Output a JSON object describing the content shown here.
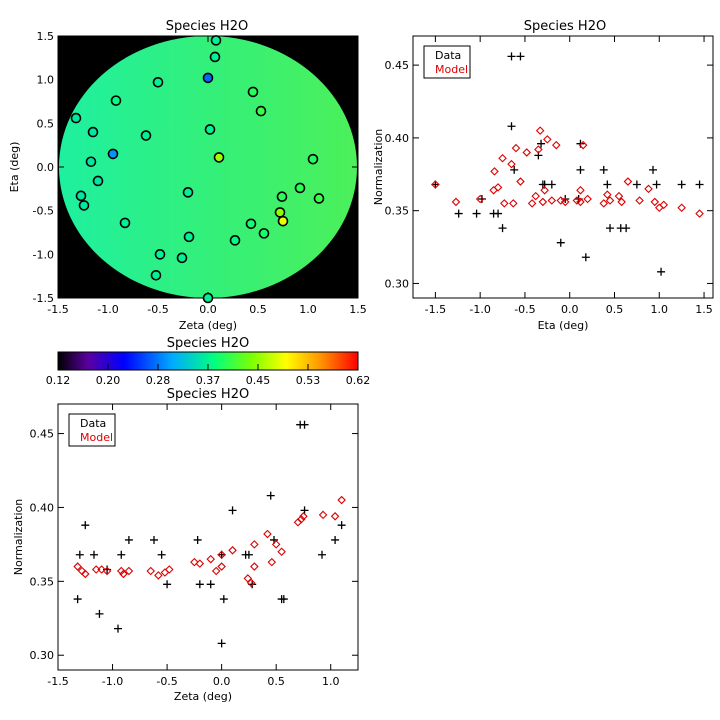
{
  "chart_data": [
    {
      "type": "scatter",
      "panel": "map",
      "title": "Species H2O",
      "xlabel": "Zeta (deg)",
      "ylabel": "Eta (deg)",
      "xlim": [
        -1.5,
        1.5
      ],
      "ylim": [
        -1.5,
        1.5
      ],
      "xticks": [
        "-1.5",
        "-1.0",
        "-0.5",
        "0.0",
        "0.5",
        "1.0",
        "1.5"
      ],
      "yticks": [
        "-1.5",
        "-1.0",
        "-0.5",
        "0.0",
        "0.5",
        "1.0",
        "1.5"
      ],
      "background": "#000000",
      "field_colors": {
        "left": "#1ef0a0",
        "center": "#33f07a",
        "right": "#4cf05a"
      },
      "points": [
        {
          "x": 0.08,
          "y": 1.45,
          "v": 0.37
        },
        {
          "x": 0.07,
          "y": 1.26,
          "v": 0.37
        },
        {
          "x": -0.5,
          "y": 0.97,
          "v": 0.37
        },
        {
          "x": 0.0,
          "y": 1.02,
          "v": 0.28
        },
        {
          "x": 0.45,
          "y": 0.86,
          "v": 0.4
        },
        {
          "x": -0.92,
          "y": 0.76,
          "v": 0.38
        },
        {
          "x": 0.53,
          "y": 0.64,
          "v": 0.41
        },
        {
          "x": -1.32,
          "y": 0.56,
          "v": 0.36
        },
        {
          "x": -1.15,
          "y": 0.4,
          "v": 0.36
        },
        {
          "x": 0.02,
          "y": 0.43,
          "v": 0.37
        },
        {
          "x": -0.62,
          "y": 0.36,
          "v": 0.37
        },
        {
          "x": -0.95,
          "y": 0.15,
          "v": 0.3
        },
        {
          "x": 0.11,
          "y": 0.11,
          "v": 0.46
        },
        {
          "x": -1.17,
          "y": 0.06,
          "v": 0.36
        },
        {
          "x": 1.05,
          "y": 0.09,
          "v": 0.4
        },
        {
          "x": -1.1,
          "y": -0.16,
          "v": 0.36
        },
        {
          "x": -0.2,
          "y": -0.29,
          "v": 0.37
        },
        {
          "x": 0.92,
          "y": -0.24,
          "v": 0.4
        },
        {
          "x": -1.27,
          "y": -0.33,
          "v": 0.36
        },
        {
          "x": 1.11,
          "y": -0.36,
          "v": 0.41
        },
        {
          "x": 0.74,
          "y": -0.34,
          "v": 0.4
        },
        {
          "x": -1.24,
          "y": -0.44,
          "v": 0.36
        },
        {
          "x": 0.72,
          "y": -0.52,
          "v": 0.45
        },
        {
          "x": -0.83,
          "y": -0.64,
          "v": 0.37
        },
        {
          "x": 0.43,
          "y": -0.65,
          "v": 0.39
        },
        {
          "x": 0.75,
          "y": -0.62,
          "v": 0.49
        },
        {
          "x": -0.19,
          "y": -0.8,
          "v": 0.37
        },
        {
          "x": 0.27,
          "y": -0.84,
          "v": 0.38
        },
        {
          "x": 0.56,
          "y": -0.76,
          "v": 0.39
        },
        {
          "x": -0.48,
          "y": -1.0,
          "v": 0.37
        },
        {
          "x": -0.26,
          "y": -1.04,
          "v": 0.37
        },
        {
          "x": -0.52,
          "y": -1.24,
          "v": 0.37
        },
        {
          "x": 0.0,
          "y": -1.5,
          "v": 0.37
        }
      ]
    },
    {
      "type": "scatter",
      "panel": "eta",
      "title": "Species H2O",
      "xlabel": "Eta (deg)",
      "ylabel": "Normalization",
      "xlim": [
        -1.75,
        1.6
      ],
      "ylim": [
        0.29,
        0.47
      ],
      "xticks": [
        "-1.5",
        "-1.0",
        "-0.5",
        "0.0",
        "0.5",
        "1.0",
        "1.5"
      ],
      "yticks": [
        "0.30",
        "0.35",
        "0.40",
        "0.45"
      ],
      "legend": [
        "Data",
        "Model"
      ],
      "legend_position": "top-left",
      "series_colors": {
        "data": "#000000",
        "model": "#dd0000"
      },
      "data": [
        [
          -1.5,
          0.368
        ],
        [
          -1.24,
          0.348
        ],
        [
          -1.04,
          0.348
        ],
        [
          -0.98,
          0.358
        ],
        [
          -0.85,
          0.348
        ],
        [
          -0.8,
          0.348
        ],
        [
          -0.75,
          0.338
        ],
        [
          -0.65,
          0.456
        ],
        [
          -0.55,
          0.456
        ],
        [
          -0.65,
          0.408
        ],
        [
          -0.62,
          0.378
        ],
        [
          -0.35,
          0.388
        ],
        [
          -0.32,
          0.396
        ],
        [
          -0.3,
          0.368
        ],
        [
          -0.28,
          0.368
        ],
        [
          -0.2,
          0.368
        ],
        [
          -0.1,
          0.328
        ],
        [
          -0.05,
          0.358
        ],
        [
          0.1,
          0.358
        ],
        [
          0.12,
          0.378
        ],
        [
          0.12,
          0.396
        ],
        [
          0.18,
          0.318
        ],
        [
          0.38,
          0.378
        ],
        [
          0.42,
          0.368
        ],
        [
          0.45,
          0.338
        ],
        [
          0.57,
          0.338
        ],
        [
          0.63,
          0.338
        ],
        [
          0.75,
          0.368
        ],
        [
          0.93,
          0.378
        ],
        [
          0.97,
          0.368
        ],
        [
          1.02,
          0.308
        ],
        [
          1.25,
          0.368
        ],
        [
          1.45,
          0.368
        ]
      ],
      "model": [
        [
          -1.5,
          0.368
        ],
        [
          -1.27,
          0.356
        ],
        [
          -1.0,
          0.358
        ],
        [
          -0.85,
          0.364
        ],
        [
          -0.84,
          0.377
        ],
        [
          -0.8,
          0.366
        ],
        [
          -0.73,
          0.355
        ],
        [
          -0.75,
          0.386
        ],
        [
          -0.65,
          0.382
        ],
        [
          -0.63,
          0.355
        ],
        [
          -0.6,
          0.393
        ],
        [
          -0.55,
          0.37
        ],
        [
          -0.48,
          0.39
        ],
        [
          -0.42,
          0.355
        ],
        [
          -0.38,
          0.36
        ],
        [
          -0.35,
          0.392
        ],
        [
          -0.33,
          0.405
        ],
        [
          -0.3,
          0.356
        ],
        [
          -0.28,
          0.364
        ],
        [
          -0.25,
          0.399
        ],
        [
          -0.2,
          0.357
        ],
        [
          -0.15,
          0.395
        ],
        [
          -0.1,
          0.357
        ],
        [
          -0.05,
          0.356
        ],
        [
          0.08,
          0.357
        ],
        [
          0.12,
          0.356
        ],
        [
          0.12,
          0.364
        ],
        [
          0.15,
          0.395
        ],
        [
          0.2,
          0.358
        ],
        [
          0.38,
          0.355
        ],
        [
          0.42,
          0.361
        ],
        [
          0.45,
          0.357
        ],
        [
          0.55,
          0.36
        ],
        [
          0.58,
          0.356
        ],
        [
          0.65,
          0.37
        ],
        [
          0.78,
          0.357
        ],
        [
          0.88,
          0.365
        ],
        [
          0.95,
          0.356
        ],
        [
          1.0,
          0.352
        ],
        [
          1.05,
          0.354
        ],
        [
          1.25,
          0.352
        ],
        [
          1.45,
          0.348
        ]
      ]
    },
    {
      "type": "colorbar",
      "panel": "colorbar",
      "title": "Species H2O",
      "ticks": [
        "0.12",
        "0.20",
        "0.28",
        "0.37",
        "0.45",
        "0.53",
        "0.62"
      ],
      "range": [
        0.12,
        0.62
      ],
      "stops": [
        "#000000",
        "#5a00a0",
        "#0000ff",
        "#00aaff",
        "#00ff80",
        "#80ff00",
        "#ffff00",
        "#ff9000",
        "#ff0000"
      ]
    },
    {
      "type": "scatter",
      "panel": "zeta",
      "title": "Species H2O",
      "xlabel": "Zeta (deg)",
      "ylabel": "Normalization",
      "xlim": [
        -1.5,
        1.25
      ],
      "ylim": [
        0.29,
        0.47
      ],
      "xticks": [
        "-1.5",
        "-1.0",
        "-0.5",
        "0.0",
        "0.5",
        "1.0"
      ],
      "yticks": [
        "0.30",
        "0.35",
        "0.40",
        "0.45"
      ],
      "legend": [
        "Data",
        "Model"
      ],
      "legend_position": "top-left",
      "series_colors": {
        "data": "#000000",
        "model": "#dd0000"
      },
      "data": [
        [
          -1.32,
          0.338
        ],
        [
          -1.3,
          0.368
        ],
        [
          -1.25,
          0.388
        ],
        [
          -1.17,
          0.368
        ],
        [
          -1.12,
          0.328
        ],
        [
          -1.05,
          0.358
        ],
        [
          -0.95,
          0.318
        ],
        [
          -0.92,
          0.368
        ],
        [
          -0.85,
          0.378
        ],
        [
          -0.62,
          0.378
        ],
        [
          -0.55,
          0.368
        ],
        [
          -0.5,
          0.348
        ],
        [
          -0.22,
          0.378
        ],
        [
          -0.2,
          0.348
        ],
        [
          -0.1,
          0.348
        ],
        [
          0.0,
          0.308
        ],
        [
          0.0,
          0.368
        ],
        [
          0.02,
          0.338
        ],
        [
          0.1,
          0.398
        ],
        [
          0.22,
          0.368
        ],
        [
          0.25,
          0.368
        ],
        [
          0.28,
          0.348
        ],
        [
          0.45,
          0.408
        ],
        [
          0.48,
          0.378
        ],
        [
          0.55,
          0.338
        ],
        [
          0.57,
          0.338
        ],
        [
          0.72,
          0.456
        ],
        [
          0.76,
          0.456
        ],
        [
          0.76,
          0.398
        ],
        [
          0.92,
          0.368
        ],
        [
          1.04,
          0.378
        ],
        [
          1.1,
          0.388
        ]
      ],
      "model": [
        [
          -1.32,
          0.36
        ],
        [
          -1.28,
          0.357
        ],
        [
          -1.25,
          0.355
        ],
        [
          -1.15,
          0.358
        ],
        [
          -1.1,
          0.358
        ],
        [
          -1.05,
          0.357
        ],
        [
          -0.92,
          0.357
        ],
        [
          -0.9,
          0.355
        ],
        [
          -0.85,
          0.357
        ],
        [
          -0.65,
          0.357
        ],
        [
          -0.58,
          0.354
        ],
        [
          -0.52,
          0.356
        ],
        [
          -0.48,
          0.358
        ],
        [
          -0.25,
          0.363
        ],
        [
          -0.2,
          0.362
        ],
        [
          -0.1,
          0.365
        ],
        [
          -0.05,
          0.357
        ],
        [
          0.0,
          0.368
        ],
        [
          0.0,
          0.36
        ],
        [
          0.1,
          0.371
        ],
        [
          0.24,
          0.352
        ],
        [
          0.27,
          0.349
        ],
        [
          0.3,
          0.375
        ],
        [
          0.3,
          0.36
        ],
        [
          0.42,
          0.382
        ],
        [
          0.46,
          0.363
        ],
        [
          0.5,
          0.375
        ],
        [
          0.55,
          0.37
        ],
        [
          0.7,
          0.39
        ],
        [
          0.73,
          0.392
        ],
        [
          0.75,
          0.394
        ],
        [
          0.93,
          0.395
        ],
        [
          1.04,
          0.394
        ],
        [
          1.1,
          0.405
        ]
      ]
    }
  ]
}
